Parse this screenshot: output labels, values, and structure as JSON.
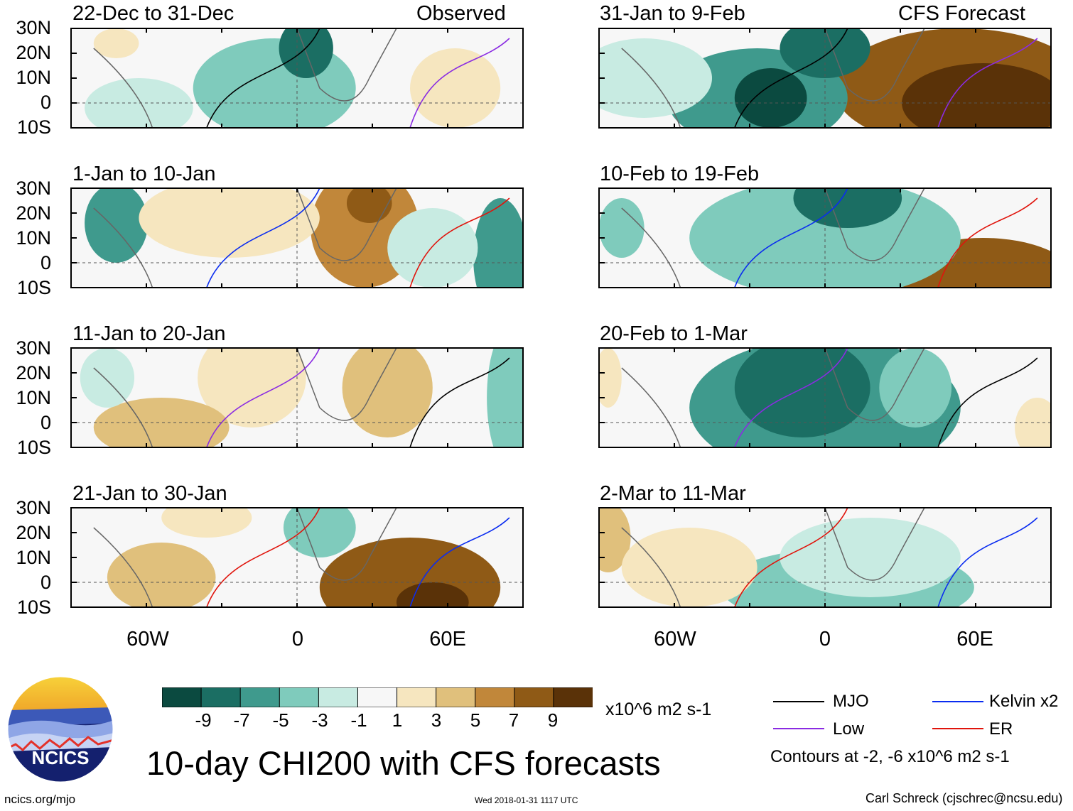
{
  "header": {
    "observed_label": "Observed",
    "forecast_label": "CFS Forecast"
  },
  "panels": {
    "left": [
      {
        "title": "22-Dec to 31-Dec"
      },
      {
        "title": "1-Jan to 10-Jan"
      },
      {
        "title": "11-Jan to 20-Jan"
      },
      {
        "title": "21-Jan to 30-Jan"
      }
    ],
    "right": [
      {
        "title": "31-Jan to 9-Feb"
      },
      {
        "title": "10-Feb to 19-Feb"
      },
      {
        "title": "20-Feb to 1-Mar"
      },
      {
        "title": "2-Mar to 11-Mar"
      }
    ]
  },
  "axes": {
    "lat_labels": [
      "30N",
      "20N",
      "10N",
      "0",
      "10S"
    ],
    "lon_labels": [
      "60W",
      "0",
      "60E"
    ]
  },
  "colorbar": {
    "ticks": [
      "-9",
      "-7",
      "-5",
      "-3",
      "-1",
      "1",
      "3",
      "5",
      "7",
      "9"
    ],
    "colors": [
      "#0b4a40",
      "#1b6e63",
      "#3f9a8d",
      "#7fcbbc",
      "#c8ebe2",
      "#f7f7f7",
      "#f6e6bf",
      "#e0c07c",
      "#c1873a",
      "#8f5a16",
      "#5a3208"
    ],
    "units": "x10^6 m2 s-1"
  },
  "legend": {
    "items": [
      {
        "label": "MJO",
        "color": "#000000"
      },
      {
        "label": "Kelvin x2",
        "color": "#0a2cf0"
      },
      {
        "label": "Low",
        "color": "#8a2be2"
      },
      {
        "label": "ER",
        "color": "#e0140c"
      }
    ],
    "contours_note": "Contours at -2, -6 x10^6 m2 s-1"
  },
  "footer": {
    "logo_text": "NCICS",
    "main_title": "10-day CHI200 with CFS forecasts",
    "site": "ncics.org/mjo",
    "timestamp": "Wed 2018-01-31 1117 UTC",
    "credit": "Carl Schreck (cjschrec@ncsu.edu)"
  }
}
